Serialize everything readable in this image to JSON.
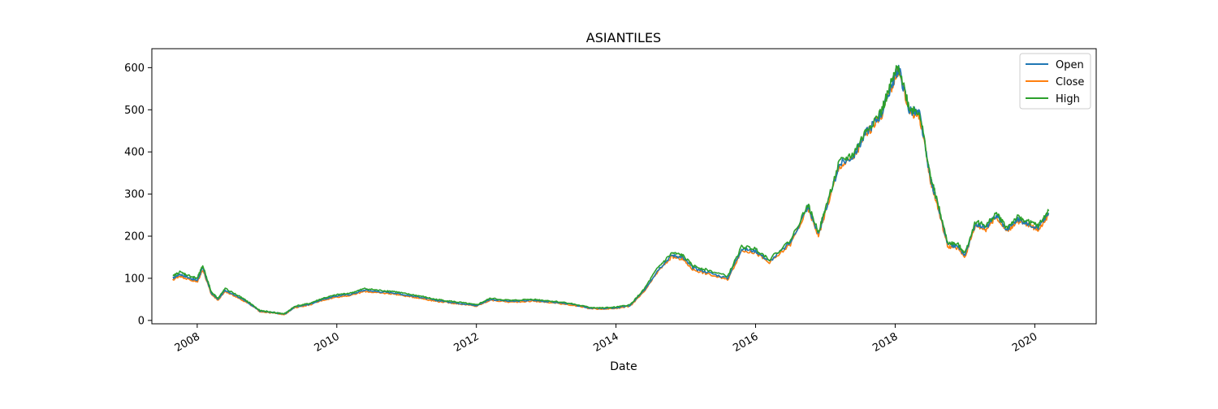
{
  "chart_data": {
    "type": "line",
    "title": "ASIANTILES",
    "xlabel": "Date",
    "ylabel": "",
    "xlim": [
      2007.35,
      2020.88
    ],
    "ylim": [
      -8,
      645
    ],
    "x_ticks": [
      2008,
      2010,
      2012,
      2014,
      2016,
      2018,
      2020
    ],
    "x_tick_labels": [
      "2008",
      "2010",
      "2012",
      "2014",
      "2016",
      "2018",
      "2020"
    ],
    "y_ticks": [
      0,
      100,
      200,
      300,
      400,
      500,
      600
    ],
    "y_tick_labels": [
      "0",
      "100",
      "200",
      "300",
      "400",
      "500",
      "600"
    ],
    "grid": false,
    "legend_position": "top-right",
    "series": [
      {
        "name": "Open",
        "color": "#1f77b4",
        "offset": 0
      },
      {
        "name": "Close",
        "color": "#ff7f0e",
        "offset": -4
      },
      {
        "name": "High",
        "color": "#2ca02c",
        "offset": 5
      }
    ],
    "x": [
      2007.65,
      2007.75,
      2007.9,
      2008.0,
      2008.08,
      2008.2,
      2008.3,
      2008.4,
      2008.6,
      2008.75,
      2008.9,
      2009.1,
      2009.25,
      2009.4,
      2009.6,
      2009.8,
      2010.0,
      2010.2,
      2010.4,
      2010.6,
      2010.8,
      2011.0,
      2011.2,
      2011.4,
      2011.6,
      2011.8,
      2012.0,
      2012.2,
      2012.5,
      2012.8,
      2013.0,
      2013.3,
      2013.6,
      2013.8,
      2014.0,
      2014.2,
      2014.4,
      2014.6,
      2014.8,
      2014.95,
      2015.1,
      2015.3,
      2015.6,
      2015.8,
      2016.0,
      2016.2,
      2016.5,
      2016.75,
      2016.9,
      2017.0,
      2017.2,
      2017.4,
      2017.6,
      2017.8,
      2017.95,
      2018.05,
      2018.2,
      2018.35,
      2018.5,
      2018.6,
      2018.75,
      2018.9,
      2019.0,
      2019.15,
      2019.3,
      2019.45,
      2019.6,
      2019.75,
      2019.9,
      2020.05,
      2020.2
    ],
    "values": [
      100,
      110,
      100,
      95,
      125,
      65,
      50,
      72,
      55,
      40,
      22,
      18,
      15,
      32,
      38,
      50,
      58,
      62,
      72,
      68,
      66,
      60,
      55,
      48,
      44,
      40,
      35,
      50,
      45,
      48,
      45,
      40,
      30,
      28,
      30,
      35,
      70,
      120,
      155,
      150,
      125,
      115,
      100,
      170,
      165,
      140,
      185,
      270,
      205,
      260,
      370,
      390,
      450,
      490,
      560,
      600,
      500,
      490,
      340,
      280,
      180,
      175,
      155,
      230,
      220,
      250,
      215,
      240,
      230,
      220,
      255
    ]
  }
}
